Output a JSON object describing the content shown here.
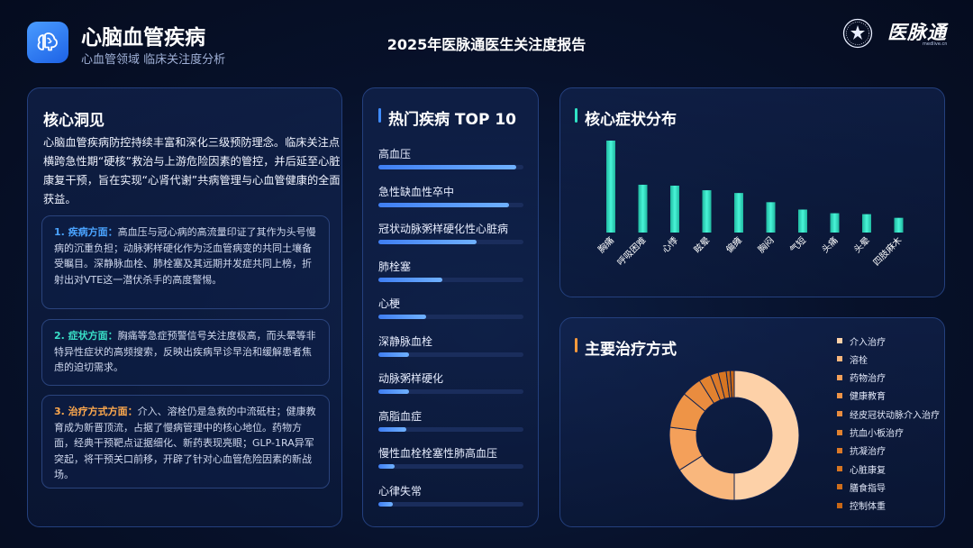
{
  "header": {
    "title": "心脑血管疾病",
    "subtitle": "心血管领域 临床关注度分析",
    "report_title": "2025年医脉通医生关注度报告",
    "brand_name": "医脉通",
    "brand_url": "medlive.cn"
  },
  "insights": {
    "title": "核心洞见",
    "intro": "心脑血管疾病防控持续丰富和深化三级预防理念。临床关注点横跨急性期“硬核”救治与上游危险因素的管控，并后延至心脏康复干预，旨在实现“心肾代谢”共病管理与心血管健康的全面获益。",
    "cards": [
      {
        "head": "1. 疾病方面：",
        "body": "高血压与冠心病的高流量印证了其作为头号慢病的沉重负担；动脉粥样硬化作为泛血管病变的共同土壤备受瞩目。深静脉血栓、肺栓塞及其远期并发症共同上榜，折射出对VTE这一潜伏杀手的高度警惕。",
        "color": "#4aa3ff"
      },
      {
        "head": "2. 症状方面：",
        "body": "胸痛等急症预警信号关注度极高，而头晕等非特异性症状的高频搜索，反映出疾病早诊早治和缓解患者焦虑的迫切需求。",
        "color": "#39e0c8"
      },
      {
        "head": "3. 治疗方式方面：",
        "body": "介入、溶栓仍是急救的中流砥柱；健康教育成为新晋顶流，占据了慢病管理中的核心地位。药物方面，经典干预靶点证据细化、新药表现亮眼；GLP-1RA异军突起，将干预关口前移，开辟了针对心血管危险因素的新战场。",
        "color": "#ffa94d"
      }
    ]
  },
  "top_diseases": {
    "title": "热门疾病 TOP 10",
    "accent": "#3f8cff",
    "items": [
      {
        "label": "高血压",
        "value": 95
      },
      {
        "label": "急性缺血性卒中",
        "value": 90
      },
      {
        "label": "冠状动脉粥样硬化性心脏病",
        "value": 68
      },
      {
        "label": "肺栓塞",
        "value": 44
      },
      {
        "label": "心梗",
        "value": 33
      },
      {
        "label": "深静脉血栓",
        "value": 21
      },
      {
        "label": "动脉粥样硬化",
        "value": 21
      },
      {
        "label": "高脂血症",
        "value": 19
      },
      {
        "label": "慢性血栓栓塞性肺高血压",
        "value": 11
      },
      {
        "label": "心律失常",
        "value": 10
      }
    ]
  },
  "symptoms": {
    "title": "核心症状分布",
    "accent": "#2fe3c6"
  },
  "treatments": {
    "title": "主要治疗方式",
    "accent": "#ff9a3c"
  },
  "chart_data": [
    {
      "type": "bar",
      "title": "核心症状分布",
      "categories": [
        "胸痛",
        "呼吸困难",
        "心悸",
        "眩晕",
        "偏瘫",
        "胸闷",
        "气短",
        "头痛",
        "头晕",
        "四肢麻木"
      ],
      "values": [
        100,
        52,
        51,
        46,
        43,
        33,
        25,
        21,
        20,
        16
      ],
      "ylim": [
        0,
        100
      ]
    },
    {
      "type": "pie",
      "title": "主要治疗方式",
      "categories": [
        "介入治疗",
        "溶栓",
        "药物治疗",
        "健康教育",
        "经皮冠状动脉介入治疗",
        "抗血小板治疗",
        "抗凝治疗",
        "心脏康复",
        "膳食指导",
        "控制体重"
      ],
      "values": [
        50,
        16,
        11,
        9,
        5,
        3,
        2,
        2,
        1,
        1
      ],
      "colors": [
        "#fdd1a8",
        "#f9b77d",
        "#f4a05a",
        "#ee9447",
        "#e98c3f",
        "#e2822f",
        "#db7928",
        "#d67522",
        "#cf6e1c",
        "#c86716"
      ]
    }
  ]
}
